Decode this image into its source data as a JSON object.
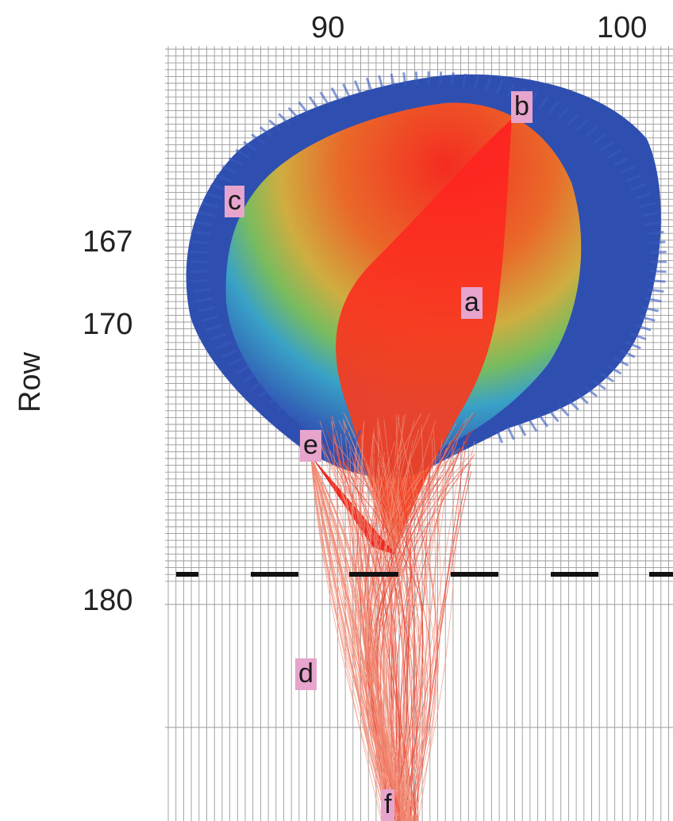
{
  "axes": {
    "x_ticks": [
      "90",
      "100"
    ],
    "y_ticks": [
      "167",
      "170",
      "180"
    ],
    "y_label": "Row"
  },
  "points": {
    "a": "a",
    "b": "b",
    "c": "c",
    "d": "d",
    "e": "e",
    "f": "f"
  },
  "colors": {
    "outer": "#2f4fb0",
    "mid": "#3fa0c8",
    "green": "#55b850",
    "orange": "#f08a2a",
    "core": "#ee2020",
    "grid": "#9a9a9a",
    "label_bg": "#e7a4cc"
  }
}
